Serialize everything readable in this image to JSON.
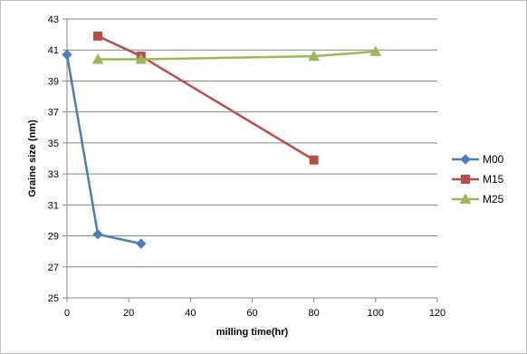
{
  "chart_data": {
    "type": "line",
    "title": "",
    "xlabel": "milling time(hr)",
    "ylabel": "Graine size (nm)",
    "xlim": [
      0,
      120
    ],
    "ylim": [
      25,
      43
    ],
    "x_ticks": [
      0,
      20,
      40,
      60,
      80,
      100,
      120
    ],
    "y_ticks": [
      25,
      27,
      29,
      31,
      33,
      35,
      37,
      39,
      41,
      43
    ],
    "grid": "horizontal",
    "legend_position": "right",
    "series": [
      {
        "name": "M00",
        "color": "#4a7ebb",
        "marker": "diamond",
        "x": [
          0,
          10,
          24
        ],
        "y": [
          40.7,
          29.1,
          28.5
        ]
      },
      {
        "name": "M15",
        "color": "#be4b48",
        "marker": "square",
        "x": [
          10,
          24,
          80
        ],
        "y": [
          41.9,
          40.6,
          33.9
        ]
      },
      {
        "name": "M25",
        "color": "#98b954",
        "marker": "triangle",
        "x": [
          10,
          24,
          80,
          100
        ],
        "y": [
          40.4,
          40.4,
          40.6,
          40.9
        ]
      }
    ]
  }
}
